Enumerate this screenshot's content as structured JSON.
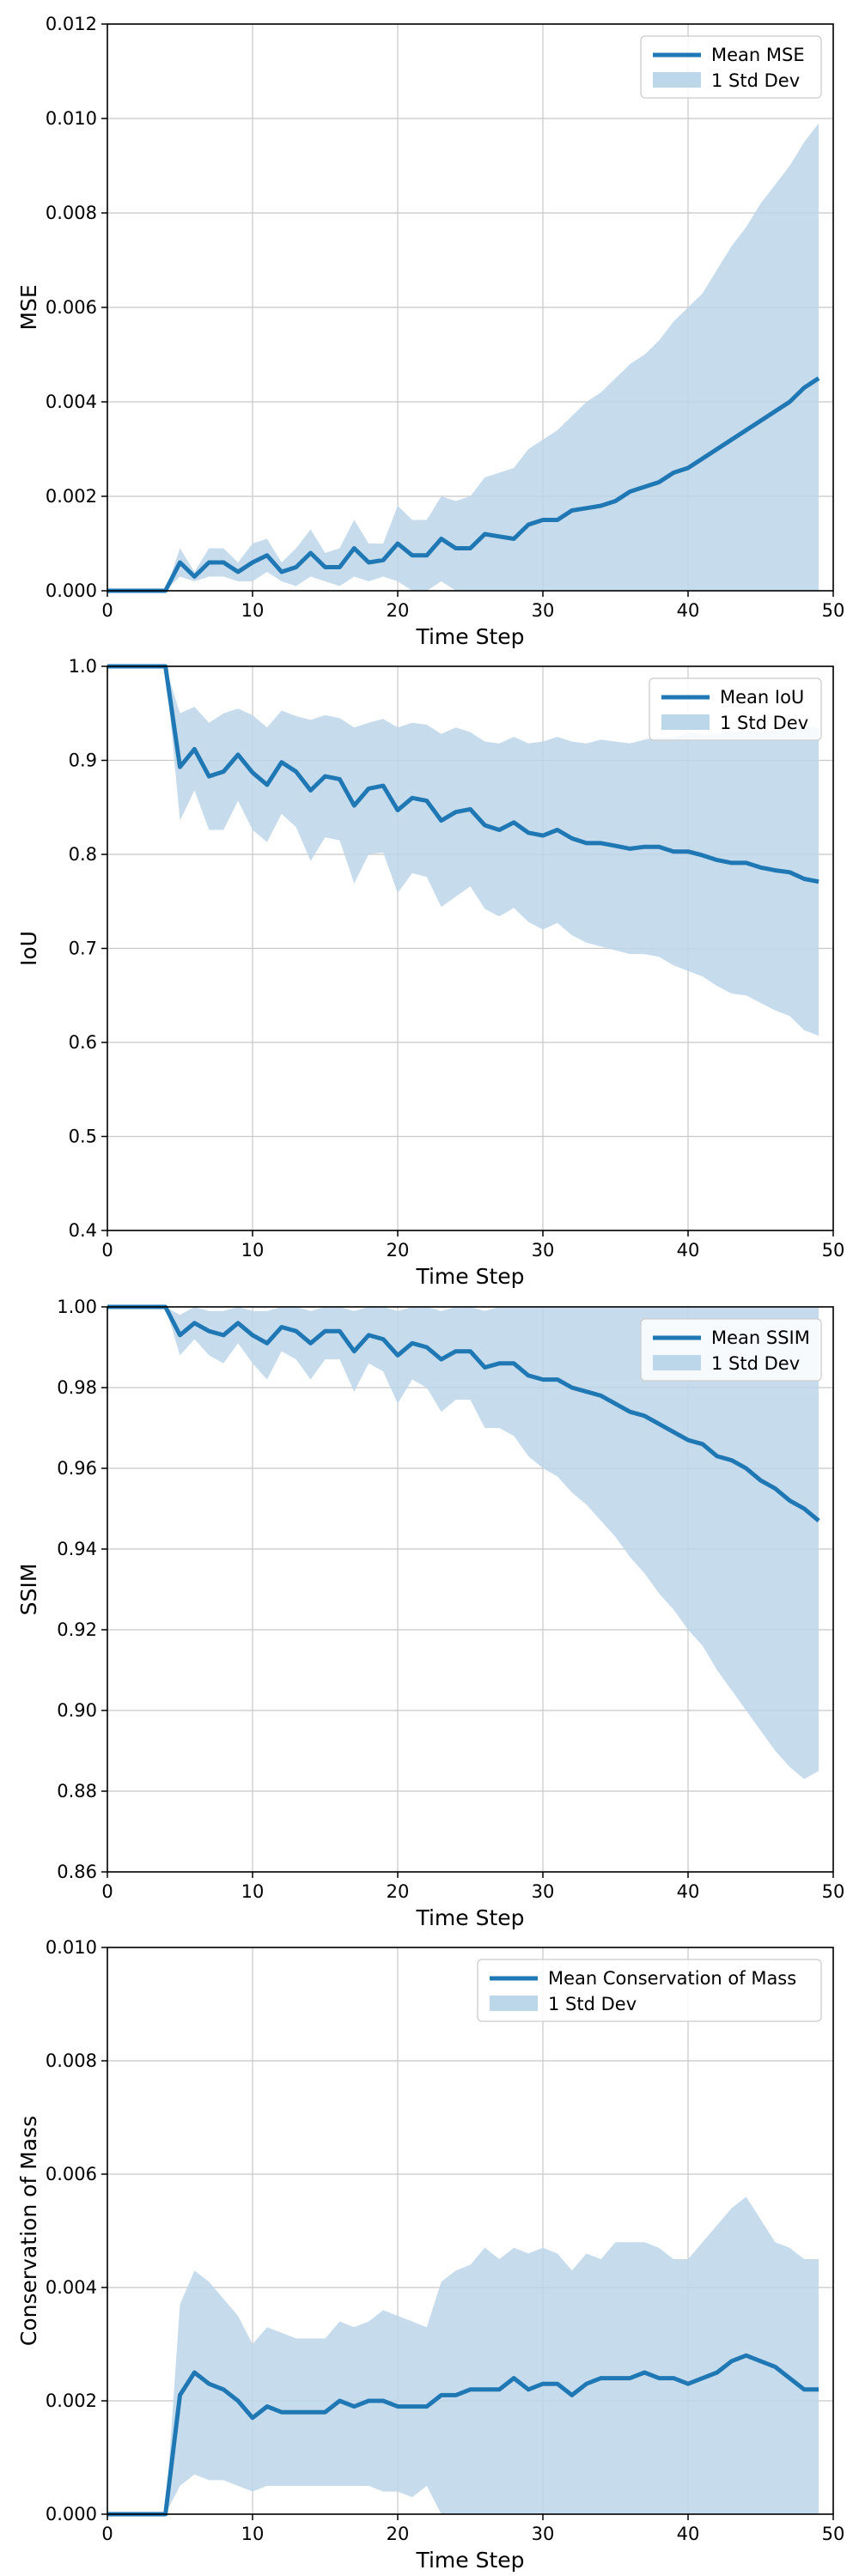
{
  "colors": {
    "line": "#1f77b4",
    "band": "#bcd6ea",
    "grid": "#c8c8c8",
    "axes": "#000000"
  },
  "chart_data": [
    {
      "type": "line",
      "xlabel": "Time Step",
      "ylabel": "MSE",
      "xlim": [
        0,
        50
      ],
      "ylim": [
        0,
        0.012
      ],
      "xticks": [
        0,
        10,
        20,
        30,
        40,
        50
      ],
      "yticks": [
        0.0,
        0.002,
        0.004,
        0.006,
        0.008,
        0.01,
        0.012
      ],
      "ytick_labels": [
        "0.000",
        "0.002",
        "0.004",
        "0.006",
        "0.008",
        "0.010",
        "0.012"
      ],
      "legend_position": "top-right",
      "legend": [
        "Mean MSE",
        "1 Std Dev"
      ],
      "x": [
        0,
        1,
        2,
        3,
        4,
        5,
        6,
        7,
        8,
        9,
        10,
        11,
        12,
        13,
        14,
        15,
        16,
        17,
        18,
        19,
        20,
        21,
        22,
        23,
        24,
        25,
        26,
        27,
        28,
        29,
        30,
        31,
        32,
        33,
        34,
        35,
        36,
        37,
        38,
        39,
        40,
        41,
        42,
        43,
        44,
        45,
        46,
        47,
        48,
        49
      ],
      "mean": [
        0,
        0,
        0,
        0,
        0,
        0.0006,
        0.0003,
        0.0006,
        0.0006,
        0.0004,
        0.0006,
        0.00075,
        0.0004,
        0.0005,
        0.0008,
        0.0005,
        0.0005,
        0.0009,
        0.0006,
        0.00065,
        0.001,
        0.00075,
        0.00075,
        0.0011,
        0.0009,
        0.0009,
        0.0012,
        0.00115,
        0.0011,
        0.0014,
        0.0015,
        0.0015,
        0.0017,
        0.00175,
        0.0018,
        0.0019,
        0.0021,
        0.0022,
        0.0023,
        0.0025,
        0.0026,
        0.0028,
        0.003,
        0.0032,
        0.0034,
        0.0036,
        0.0038,
        0.004,
        0.0043,
        0.0045
      ],
      "upper": [
        0,
        0,
        0,
        0,
        0,
        0.0009,
        0.0004,
        0.0009,
        0.0009,
        0.0006,
        0.001,
        0.0011,
        0.0006,
        0.0009,
        0.0013,
        0.0008,
        0.0009,
        0.0015,
        0.001,
        0.001,
        0.0018,
        0.0015,
        0.0015,
        0.002,
        0.0019,
        0.002,
        0.0024,
        0.0025,
        0.0026,
        0.003,
        0.0032,
        0.0034,
        0.0037,
        0.004,
        0.0042,
        0.0045,
        0.0048,
        0.005,
        0.0053,
        0.0057,
        0.006,
        0.0063,
        0.0068,
        0.0073,
        0.0077,
        0.0082,
        0.0086,
        0.009,
        0.0095,
        0.0099
      ],
      "lower": [
        0,
        0,
        0,
        0,
        0,
        0.0003,
        0.0002,
        0.0003,
        0.0003,
        0.0002,
        0.0002,
        0.0004,
        0.0002,
        0.0001,
        0.0003,
        0.0002,
        0.0001,
        0.0003,
        0.0002,
        0.0003,
        0.0002,
        0,
        0,
        0.0002,
        0,
        0,
        0,
        0,
        0,
        0,
        0,
        0,
        0,
        0,
        0,
        0,
        0,
        0,
        0,
        0,
        0,
        0,
        0,
        0,
        0,
        0,
        0,
        0,
        0,
        0
      ]
    },
    {
      "type": "line",
      "xlabel": "Time Step",
      "ylabel": "IoU",
      "xlim": [
        0,
        50
      ],
      "ylim": [
        0.4,
        1.0
      ],
      "xticks": [
        0,
        10,
        20,
        30,
        40,
        50
      ],
      "yticks": [
        0.4,
        0.5,
        0.6,
        0.7,
        0.8,
        0.9,
        1.0
      ],
      "ytick_labels": [
        "0.4",
        "0.5",
        "0.6",
        "0.7",
        "0.8",
        "0.9",
        "1.0"
      ],
      "legend_position": "top-right",
      "legend": [
        "Mean IoU",
        "1 Std Dev"
      ],
      "x": [
        0,
        1,
        2,
        3,
        4,
        5,
        6,
        7,
        8,
        9,
        10,
        11,
        12,
        13,
        14,
        15,
        16,
        17,
        18,
        19,
        20,
        21,
        22,
        23,
        24,
        25,
        26,
        27,
        28,
        29,
        30,
        31,
        32,
        33,
        34,
        35,
        36,
        37,
        38,
        39,
        40,
        41,
        42,
        43,
        44,
        45,
        46,
        47,
        48,
        49
      ],
      "mean": [
        1.0,
        1.0,
        1.0,
        1.0,
        1.0,
        0.893,
        0.912,
        0.883,
        0.888,
        0.906,
        0.887,
        0.874,
        0.898,
        0.888,
        0.868,
        0.883,
        0.88,
        0.852,
        0.87,
        0.873,
        0.847,
        0.86,
        0.857,
        0.836,
        0.845,
        0.848,
        0.831,
        0.826,
        0.834,
        0.823,
        0.82,
        0.826,
        0.817,
        0.812,
        0.812,
        0.809,
        0.806,
        0.808,
        0.808,
        0.803,
        0.803,
        0.799,
        0.794,
        0.791,
        0.791,
        0.786,
        0.783,
        0.781,
        0.774,
        0.771
      ],
      "upper": [
        1.0,
        1.0,
        1.0,
        1.0,
        1.0,
        0.95,
        0.957,
        0.94,
        0.95,
        0.955,
        0.948,
        0.935,
        0.953,
        0.947,
        0.943,
        0.948,
        0.945,
        0.935,
        0.94,
        0.944,
        0.935,
        0.94,
        0.938,
        0.928,
        0.935,
        0.93,
        0.92,
        0.918,
        0.925,
        0.918,
        0.92,
        0.925,
        0.92,
        0.918,
        0.922,
        0.92,
        0.918,
        0.922,
        0.925,
        0.924,
        0.93,
        0.928,
        0.928,
        0.93,
        0.932,
        0.93,
        0.932,
        0.934,
        0.935,
        0.935
      ],
      "lower": [
        1.0,
        1.0,
        1.0,
        1.0,
        1.0,
        0.836,
        0.868,
        0.826,
        0.826,
        0.857,
        0.826,
        0.813,
        0.843,
        0.829,
        0.793,
        0.818,
        0.815,
        0.769,
        0.8,
        0.802,
        0.759,
        0.78,
        0.776,
        0.744,
        0.755,
        0.766,
        0.742,
        0.734,
        0.743,
        0.728,
        0.72,
        0.727,
        0.714,
        0.706,
        0.702,
        0.698,
        0.694,
        0.694,
        0.691,
        0.682,
        0.676,
        0.67,
        0.66,
        0.652,
        0.65,
        0.642,
        0.634,
        0.628,
        0.613,
        0.607
      ]
    },
    {
      "type": "line",
      "xlabel": "Time Step",
      "ylabel": "SSIM",
      "xlim": [
        0,
        50
      ],
      "ylim": [
        0.86,
        1.0
      ],
      "xticks": [
        0,
        10,
        20,
        30,
        40,
        50
      ],
      "yticks": [
        0.86,
        0.88,
        0.9,
        0.92,
        0.94,
        0.96,
        0.98,
        1.0
      ],
      "ytick_labels": [
        "0.86",
        "0.88",
        "0.90",
        "0.92",
        "0.94",
        "0.96",
        "0.98",
        "1.00"
      ],
      "legend_position": "top-right",
      "legend": [
        "Mean SSIM",
        "1 Std Dev"
      ],
      "x": [
        0,
        1,
        2,
        3,
        4,
        5,
        6,
        7,
        8,
        9,
        10,
        11,
        12,
        13,
        14,
        15,
        16,
        17,
        18,
        19,
        20,
        21,
        22,
        23,
        24,
        25,
        26,
        27,
        28,
        29,
        30,
        31,
        32,
        33,
        34,
        35,
        36,
        37,
        38,
        39,
        40,
        41,
        42,
        43,
        44,
        45,
        46,
        47,
        48,
        49
      ],
      "mean": [
        1.0,
        1.0,
        1.0,
        1.0,
        1.0,
        0.993,
        0.996,
        0.994,
        0.993,
        0.996,
        0.993,
        0.991,
        0.995,
        0.994,
        0.991,
        0.994,
        0.994,
        0.989,
        0.993,
        0.992,
        0.988,
        0.991,
        0.99,
        0.987,
        0.989,
        0.989,
        0.985,
        0.986,
        0.986,
        0.983,
        0.982,
        0.982,
        0.98,
        0.979,
        0.978,
        0.976,
        0.974,
        0.973,
        0.971,
        0.969,
        0.967,
        0.966,
        0.963,
        0.962,
        0.96,
        0.957,
        0.955,
        0.952,
        0.95,
        0.947
      ],
      "upper": [
        1.0,
        1.0,
        1.0,
        1.0,
        1.0,
        0.998,
        1.0,
        0.999,
        0.999,
        1.0,
        0.999,
        0.999,
        1.0,
        1.0,
        0.999,
        1.0,
        1.0,
        0.999,
        1.0,
        1.0,
        0.999,
        1.0,
        1.0,
        0.999,
        1.0,
        1.0,
        0.999,
        1.0,
        1.0,
        1.0,
        1.0,
        1.0,
        1.0,
        1.0,
        1.0,
        1.0,
        1.0,
        1.0,
        1.0,
        1.0,
        1.0,
        1.0,
        1.0,
        1.0,
        1.0,
        1.0,
        1.0,
        1.0,
        1.0,
        1.0
      ],
      "lower": [
        1.0,
        1.0,
        1.0,
        1.0,
        1.0,
        0.988,
        0.992,
        0.988,
        0.986,
        0.991,
        0.986,
        0.982,
        0.989,
        0.987,
        0.982,
        0.987,
        0.987,
        0.979,
        0.986,
        0.984,
        0.976,
        0.982,
        0.98,
        0.974,
        0.977,
        0.977,
        0.97,
        0.97,
        0.968,
        0.963,
        0.96,
        0.958,
        0.954,
        0.951,
        0.947,
        0.943,
        0.938,
        0.934,
        0.929,
        0.925,
        0.92,
        0.916,
        0.91,
        0.905,
        0.9,
        0.895,
        0.89,
        0.886,
        0.883,
        0.885
      ]
    },
    {
      "type": "line",
      "xlabel": "Time Step",
      "ylabel": "Conservation of Mass",
      "xlim": [
        0,
        50
      ],
      "ylim": [
        0,
        0.01
      ],
      "xticks": [
        0,
        10,
        20,
        30,
        40,
        50
      ],
      "yticks": [
        0.0,
        0.002,
        0.004,
        0.006,
        0.008,
        0.01
      ],
      "ytick_labels": [
        "0.000",
        "0.002",
        "0.004",
        "0.006",
        "0.008",
        "0.010"
      ],
      "legend_position": "top-right",
      "legend": [
        "Mean Conservation of Mass",
        "1 Std Dev"
      ],
      "x": [
        0,
        1,
        2,
        3,
        4,
        5,
        6,
        7,
        8,
        9,
        10,
        11,
        12,
        13,
        14,
        15,
        16,
        17,
        18,
        19,
        20,
        21,
        22,
        23,
        24,
        25,
        26,
        27,
        28,
        29,
        30,
        31,
        32,
        33,
        34,
        35,
        36,
        37,
        38,
        39,
        40,
        41,
        42,
        43,
        44,
        45,
        46,
        47,
        48,
        49
      ],
      "mean": [
        0,
        0,
        0,
        0,
        0,
        0.0021,
        0.0025,
        0.0023,
        0.0022,
        0.002,
        0.0017,
        0.0019,
        0.0018,
        0.0018,
        0.0018,
        0.0018,
        0.002,
        0.0019,
        0.002,
        0.002,
        0.0019,
        0.0019,
        0.0019,
        0.0021,
        0.0021,
        0.0022,
        0.0022,
        0.0022,
        0.0024,
        0.0022,
        0.0023,
        0.0023,
        0.0021,
        0.0023,
        0.0024,
        0.0024,
        0.0024,
        0.0025,
        0.0024,
        0.0024,
        0.0023,
        0.0024,
        0.0025,
        0.0027,
        0.0028,
        0.0027,
        0.0026,
        0.0024,
        0.0022,
        0.0022
      ],
      "upper": [
        0,
        0,
        0,
        0,
        0,
        0.0037,
        0.0043,
        0.0041,
        0.0038,
        0.0035,
        0.003,
        0.0033,
        0.0032,
        0.0031,
        0.0031,
        0.0031,
        0.0034,
        0.0033,
        0.0034,
        0.0036,
        0.0035,
        0.0034,
        0.0033,
        0.0041,
        0.0043,
        0.0044,
        0.0047,
        0.0045,
        0.0047,
        0.0046,
        0.0047,
        0.0046,
        0.0043,
        0.0046,
        0.0045,
        0.0048,
        0.0048,
        0.0048,
        0.0047,
        0.0045,
        0.0045,
        0.0048,
        0.0051,
        0.0054,
        0.0056,
        0.0052,
        0.0048,
        0.0047,
        0.0045,
        0.0045
      ],
      "lower": [
        0,
        0,
        0,
        0,
        0,
        0.0005,
        0.0007,
        0.0006,
        0.0006,
        0.0005,
        0.0004,
        0.0005,
        0.0005,
        0.0005,
        0.0005,
        0.0005,
        0.0005,
        0.0005,
        0.0005,
        0.0004,
        0.0004,
        0.0003,
        0.0005,
        0,
        0,
        0,
        0,
        0,
        0,
        0,
        0,
        0,
        0,
        0,
        0,
        0,
        0,
        0,
        0,
        0,
        0,
        0,
        0,
        0,
        0,
        0,
        0,
        0,
        0,
        0
      ]
    }
  ]
}
